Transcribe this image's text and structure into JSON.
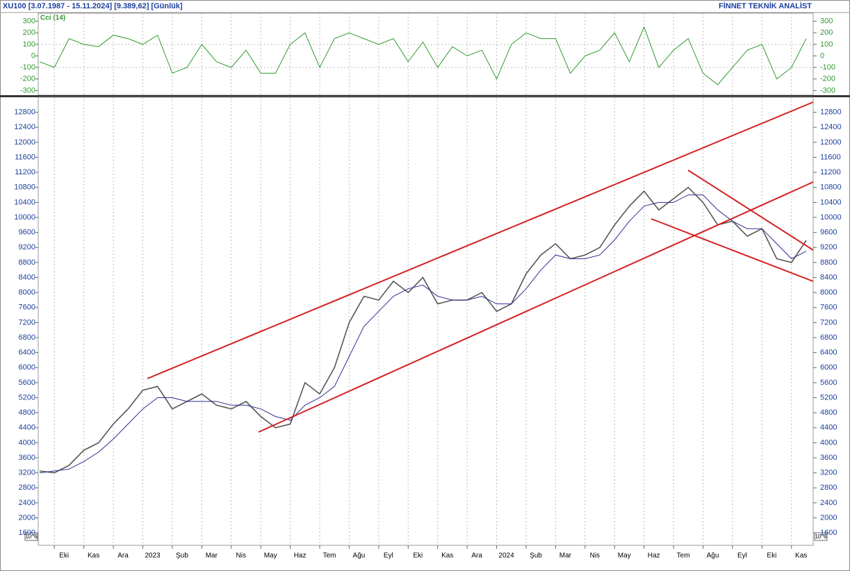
{
  "header": {
    "title": "XU100  [3.07.1987 - 15.11.2024]  [9.389,62]  [Günlük]",
    "brand": "FİNNET TEKNİK ANALİST",
    "axis_note": "10^6"
  },
  "chart_data": [
    {
      "type": "line",
      "series": [
        {
          "name": "Cci (14)",
          "color": "#2e9a2e",
          "values": [
            -50,
            -100,
            150,
            100,
            80,
            180,
            150,
            100,
            180,
            -150,
            -100,
            100,
            -50,
            -100,
            50,
            -150,
            -150,
            100,
            200,
            -100,
            150,
            200,
            150,
            100,
            150,
            -50,
            120,
            -100,
            80,
            0,
            50,
            -200,
            100,
            200,
            150,
            150,
            -150,
            0,
            50,
            200,
            -50,
            250,
            -100,
            50,
            150,
            -150,
            -250,
            -100,
            50,
            100,
            -200,
            -100,
            150
          ]
        }
      ],
      "ylim": [
        -340,
        370
      ],
      "yticks": [
        300,
        200,
        100,
        0,
        -100,
        -200,
        -300
      ],
      "grid": true
    },
    {
      "type": "line",
      "categories": [
        null,
        "Eki",
        null,
        "Kas",
        null,
        "Ara",
        null,
        "2023",
        null,
        "Şub",
        null,
        "Mar",
        null,
        "Nis",
        null,
        "May",
        null,
        "Haz",
        null,
        "Tem",
        null,
        "Ağu",
        null,
        "Eyl",
        null,
        "Eki",
        null,
        "Kas",
        null,
        "Ara",
        null,
        "2024",
        null,
        "Şub",
        null,
        "Mar",
        null,
        "Nis",
        null,
        "May",
        null,
        "Haz",
        null,
        "Tem",
        null,
        "Ağu",
        null,
        "Eyl",
        null,
        "Eki",
        null,
        "Kas",
        null
      ],
      "series": [
        {
          "color": "#555555",
          "values": [
            3250,
            3200,
            3400,
            3800,
            4000,
            4500,
            4900,
            5400,
            5500,
            4900,
            5100,
            5300,
            5000,
            4900,
            5100,
            4700,
            4400,
            4500,
            5600,
            5300,
            6000,
            7200,
            7900,
            7800,
            8300,
            8000,
            8400,
            7700,
            7800,
            7800,
            8000,
            7500,
            7700,
            8500,
            9000,
            9300,
            8900,
            9000,
            9200,
            9800,
            10300,
            10700,
            10200,
            10500,
            10800,
            10400,
            9800,
            9900,
            9500,
            9700,
            8900,
            8800,
            9390
          ]
        },
        {
          "color": "#2b2f8f",
          "values": [
            3200,
            3250,
            3300,
            3500,
            3750,
            4100,
            4500,
            4900,
            5200,
            5200,
            5100,
            5100,
            5100,
            5000,
            5000,
            4900,
            4700,
            4600,
            5000,
            5200,
            5500,
            6300,
            7100,
            7500,
            7900,
            8100,
            8200,
            7900,
            7800,
            7800,
            7900,
            7700,
            7700,
            8100,
            8600,
            9000,
            8900,
            8900,
            9000,
            9400,
            9900,
            10300,
            10400,
            10400,
            10600,
            10600,
            10200,
            9900,
            9700,
            9700,
            9300,
            8900,
            9100
          ]
        }
      ],
      "ylim": [
        1270,
        13200
      ],
      "yticks": [
        1600,
        2000,
        2400,
        2800,
        3200,
        3600,
        4000,
        4400,
        4800,
        5200,
        5600,
        6000,
        6400,
        6800,
        7200,
        7600,
        8000,
        8400,
        8800,
        9200,
        9600,
        10000,
        10400,
        10800,
        11200,
        11600,
        12000,
        12400,
        12800
      ],
      "grid": true
    }
  ]
}
